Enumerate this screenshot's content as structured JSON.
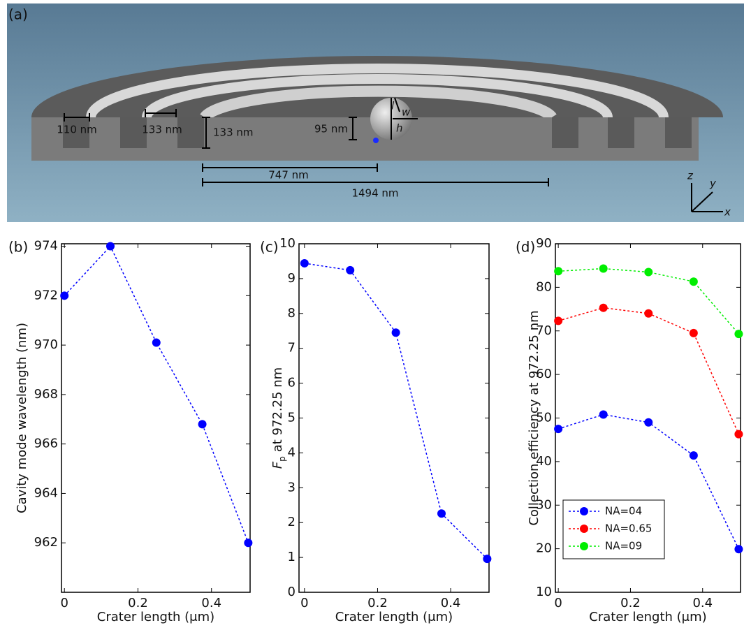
{
  "panel_a": {
    "label": "(a)",
    "annotations": [
      "110 nm",
      "133 nm",
      "133 nm",
      "95 nm",
      "747 nm",
      "1494 nm",
      "l",
      "w",
      "h"
    ],
    "axes": [
      "z",
      "y",
      "x"
    ]
  },
  "chart_data": [
    {
      "type": "line",
      "panel_label": "(b)",
      "xlabel": "Crater length (μm)",
      "ylabel": "Cavity mode wavelength (nm)",
      "x": [
        0,
        0.125,
        0.25,
        0.375,
        0.5
      ],
      "xlim": [
        -0.008,
        0.505
      ],
      "xticks": [
        0,
        0.2,
        0.4
      ],
      "ylim": [
        960,
        974.1
      ],
      "yticks": [
        962,
        964,
        966,
        968,
        970,
        972,
        974
      ],
      "series": [
        {
          "color": "#0000ff",
          "values": [
            972.0,
            974.0,
            970.1,
            966.8,
            962.0
          ]
        }
      ]
    },
    {
      "type": "line",
      "panel_label": "(c)",
      "xlabel": "Crater length (μm)",
      "ylabel": {
        "symbol": "F",
        "subscript": "p",
        "text": "at 972.25 nm"
      },
      "x": [
        0,
        0.125,
        0.25,
        0.375,
        0.5
      ],
      "xlim": [
        -0.015,
        0.505
      ],
      "xticks": [
        0,
        0.2,
        0.4
      ],
      "ylim": [
        0,
        10
      ],
      "yticks": [
        0,
        1,
        2,
        3,
        4,
        5,
        6,
        7,
        8,
        9,
        10
      ],
      "series": [
        {
          "color": "#0000ff",
          "values": [
            9.44,
            9.24,
            7.45,
            2.26,
            0.96
          ]
        }
      ]
    },
    {
      "type": "line",
      "panel_label": "(d)",
      "xlabel": "Crater length (μm)",
      "ylabel": "Collection efficiency at 972.25 nm",
      "x": [
        0,
        0.125,
        0.25,
        0.375,
        0.5
      ],
      "xlim": [
        -0.008,
        0.505
      ],
      "xticks": [
        0,
        0.2,
        0.4
      ],
      "ylim": [
        10,
        90
      ],
      "yticks": [
        10,
        20,
        30,
        40,
        50,
        60,
        70,
        80,
        90
      ],
      "legend": "lower left",
      "series": [
        {
          "name": "NA=04",
          "color": "#0000ff",
          "values": [
            47.5,
            50.8,
            49.0,
            41.4,
            19.9
          ]
        },
        {
          "name": "NA=0.65",
          "color": "#ff0000",
          "values": [
            72.3,
            75.3,
            74.0,
            69.5,
            46.3
          ]
        },
        {
          "name": "NA=09",
          "color": "#00ee00",
          "values": [
            83.7,
            84.3,
            83.5,
            81.3,
            69.3
          ]
        }
      ]
    }
  ]
}
